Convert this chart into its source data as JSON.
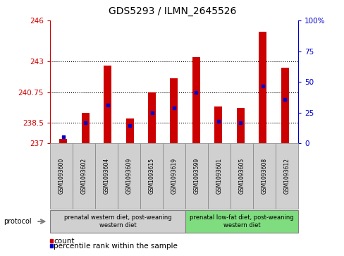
{
  "title": "GDS5293 / ILMN_2645526",
  "samples": [
    "GSM1093600",
    "GSM1093602",
    "GSM1093604",
    "GSM1093609",
    "GSM1093615",
    "GSM1093619",
    "GSM1093599",
    "GSM1093601",
    "GSM1093605",
    "GSM1093608",
    "GSM1093612"
  ],
  "bar_values": [
    237.32,
    239.22,
    242.72,
    238.82,
    240.75,
    241.78,
    243.32,
    239.68,
    239.58,
    245.18,
    242.52
  ],
  "percentile_values": [
    237.48,
    238.52,
    239.82,
    238.28,
    239.22,
    239.62,
    240.75,
    238.62,
    238.52,
    241.18,
    240.22
  ],
  "ymin": 237,
  "ymax": 246,
  "yticks": [
    237,
    238.5,
    240.75,
    243,
    246
  ],
  "ytick_labels": [
    "237",
    "238.5",
    "240.75",
    "243",
    "246"
  ],
  "right_yticks_pct": [
    0,
    25,
    50,
    75,
    100
  ],
  "right_ytick_labels": [
    "0",
    "25",
    "50",
    "75",
    "100%"
  ],
  "group1_count": 6,
  "group2_count": 5,
  "group1_label": "prenatal western diet, post-weaning\nwestern diet",
  "group2_label": "prenatal low-fat diet, post-weaning\nwestern diet",
  "protocol_label": "protocol",
  "bar_color": "#cc0000",
  "dot_color": "#0000cc",
  "group1_bg": "#d0d0d0",
  "group2_bg": "#7fdd7f",
  "legend_count": "count",
  "legend_pct": "percentile rank within the sample",
  "left_axis_color": "#cc0000",
  "right_axis_color": "#0000cc",
  "grid_dotted_at": [
    238.5,
    240.75,
    243
  ],
  "bar_width": 0.35,
  "figwidth": 4.89,
  "figheight": 3.63,
  "dpi": 100
}
